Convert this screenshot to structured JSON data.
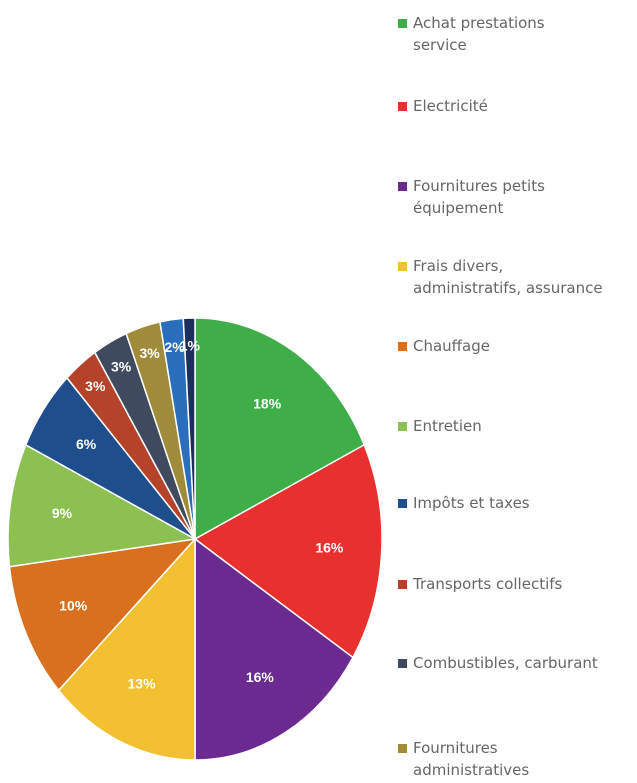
{
  "chart_data": {
    "type": "pie",
    "categories": [
      "Achat prestations service",
      "Electricité",
      "Fournitures petits équipement",
      "Frais divers, administratifs, assurance",
      "Chauffage",
      "Entretien",
      "Impôts et taxes",
      "Transports collectifs",
      "Combustibles, carburant",
      "Fournitures administratives",
      null,
      null
    ],
    "values": [
      18,
      16,
      16,
      13,
      10,
      9,
      6,
      3,
      3,
      3,
      2,
      1
    ],
    "value_labels": [
      "18%",
      "16%",
      "16%",
      "13%",
      "10%",
      "9%",
      "6%",
      "3%",
      "3%",
      "3%",
      "2%",
      "1%"
    ],
    "colors": [
      "#3fae49",
      "#e8302e",
      "#6a2a8f",
      "#f3c031",
      "#d8701f",
      "#8cc152",
      "#1f4e8c",
      "#b5432a",
      "#3f4a5e",
      "#a08b3a",
      "#2a6ebb",
      "#1b2e5c"
    ],
    "legend": "right"
  }
}
